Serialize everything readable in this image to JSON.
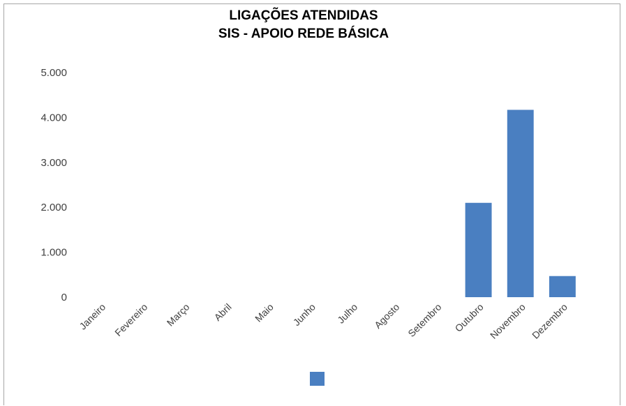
{
  "chart_data": {
    "type": "bar",
    "title": [
      "LIGAÇÕES ATENDIDAS",
      "SIS - APOIO REDE BÁSICA"
    ],
    "xlabel": "",
    "ylabel": "",
    "categories": [
      "Janeiro",
      "Fevereiro",
      "Março",
      "Abril",
      "Maio",
      "Junho",
      "Julho",
      "Agosto",
      "Setembro",
      "Outubro",
      "Novembro",
      "Dezembro"
    ],
    "values": [
      0,
      0,
      0,
      0,
      0,
      0,
      0,
      0,
      0,
      2100,
      4170,
      470
    ],
    "ylim": [
      0,
      5000
    ],
    "yticks": [
      0,
      1000,
      2000,
      3000,
      4000,
      5000
    ],
    "ytick_labels": [
      "0",
      "1.000",
      "2.000",
      "3.000",
      "4.000",
      "5.000"
    ],
    "grid": false,
    "legend": {
      "placement": "bottom-center",
      "entries": [
        {
          "name": "",
          "color": "#4a7fc1"
        }
      ]
    },
    "bar_color": "#4a7fc1"
  }
}
